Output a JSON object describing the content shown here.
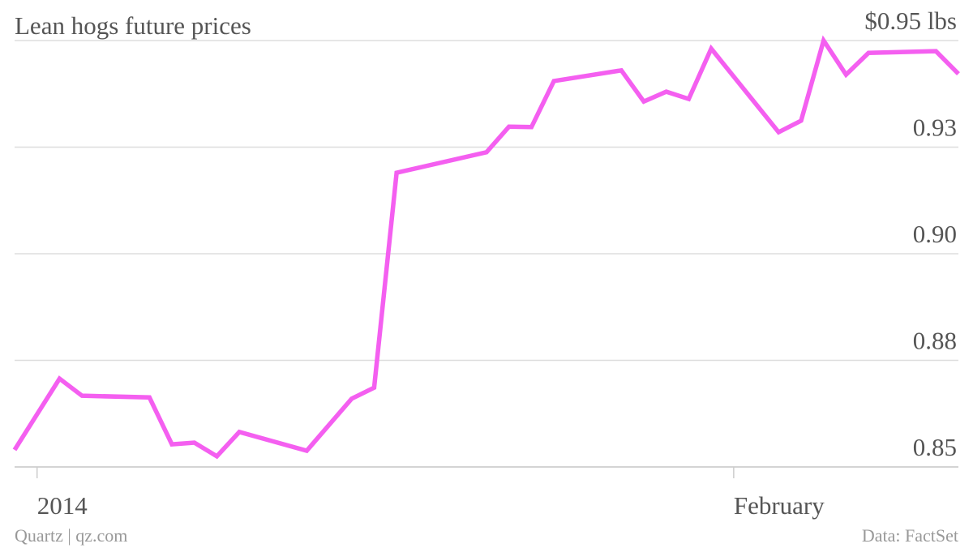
{
  "chart_data": {
    "type": "line",
    "title": "Lean hogs future prices",
    "source": "Data: FactSet",
    "credit": "Quartz | qz.com",
    "x": [
      "2013-12-31",
      "2014-01-02",
      "2014-01-03",
      "2014-01-06",
      "2014-01-07",
      "2014-01-08",
      "2014-01-09",
      "2014-01-10",
      "2014-01-13",
      "2014-01-15",
      "2014-01-16",
      "2014-01-17",
      "2014-01-21",
      "2014-01-22",
      "2014-01-23",
      "2014-01-24",
      "2014-01-27",
      "2014-01-28",
      "2014-01-29",
      "2014-01-30",
      "2014-01-31",
      "2014-02-03",
      "2014-02-04",
      "2014-02-05",
      "2014-02-06",
      "2014-02-07",
      "2014-02-10",
      "2014-02-11"
    ],
    "series": [
      {
        "name": "Lean hogs",
        "color": "#f45ff0",
        "values": [
          0.854,
          0.8707,
          0.8667,
          0.8663,
          0.8553,
          0.8557,
          0.8525,
          0.8582,
          0.8538,
          0.866,
          0.8686,
          0.919,
          0.9238,
          0.9298,
          0.9297,
          0.9405,
          0.943,
          0.9357,
          0.938,
          0.9363,
          0.9481,
          0.9285,
          0.9312,
          0.95,
          0.942,
          0.9471,
          0.9475,
          0.9422
        ]
      }
    ],
    "xlim": [
      "2013-12-31",
      "2014-02-11"
    ],
    "xticks": [
      {
        "value": "2014-01-01",
        "label": "2014"
      },
      {
        "value": "2014-02-01",
        "label": "February"
      }
    ],
    "ylim": [
      0.85,
      0.95
    ],
    "yticks": [
      0.85,
      {
        "value": 0.875,
        "label": "0.88"
      },
      {
        "value": 0.9,
        "label": "0.90"
      },
      {
        "value": 0.925,
        "label": "0.93"
      },
      {
        "value": 0.95,
        "label": "$0.95 lbs"
      }
    ],
    "grid": true
  }
}
